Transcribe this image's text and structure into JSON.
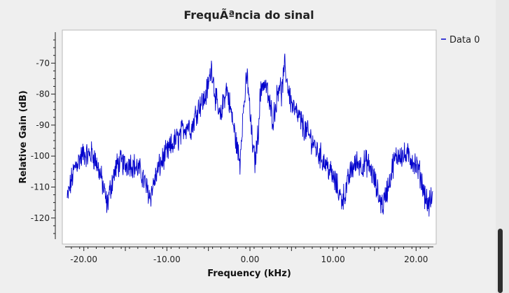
{
  "window": {
    "title": "FrequÃªncia do sinal"
  },
  "chart_data": {
    "type": "line",
    "title": "FrequÃªncia do sinal",
    "xlabel": "Frequency (kHz)",
    "ylabel": "Relative Gain (dB)",
    "xlim": [
      -22,
      22
    ],
    "ylim": [
      -127.5,
      -60
    ],
    "x_ticks": [
      -20,
      -10,
      0,
      10,
      20
    ],
    "x_tick_labels": [
      "-20.00",
      "-10.00",
      "0.00",
      "10.00",
      "20.00"
    ],
    "y_ticks": [
      -70,
      -80,
      -90,
      -100,
      -110,
      -120
    ],
    "y_tick_labels": [
      "-70",
      "-80",
      "-90",
      "-100",
      "-110",
      "-120"
    ],
    "grid": false,
    "legend_position": "top-right",
    "series_color": "#0000cc",
    "series": [
      {
        "name": "Data 0",
        "x": [
          -22,
          -21.5,
          -21,
          -20.5,
          -20,
          -19.5,
          -19,
          -18.5,
          -18,
          -17.5,
          -17.2,
          -17,
          -16.5,
          -16,
          -15.5,
          -15,
          -14.5,
          -14,
          -13.5,
          -13,
          -12.5,
          -12,
          -11.5,
          -11,
          -10.5,
          -10,
          -9.5,
          -9,
          -8.5,
          -8,
          -7.5,
          -7,
          -6.5,
          -6,
          -5.5,
          -5,
          -4.6,
          -4.2,
          -3.8,
          -3.5,
          -3.2,
          -2.8,
          -2.4,
          -2,
          -1.5,
          -1.2,
          -1,
          -0.6,
          -0.3,
          0,
          0.3,
          0.6,
          1,
          1.2,
          1.5,
          2,
          2.4,
          2.8,
          3.2,
          3.5,
          3.8,
          4.2,
          4.6,
          5,
          5.5,
          6,
          6.5,
          7,
          7.5,
          8,
          8.5,
          9,
          9.5,
          10,
          10.5,
          11,
          11.5,
          12,
          12.5,
          13,
          13.5,
          14,
          14.5,
          15,
          15.5,
          16,
          16.5,
          17,
          17.2,
          17.5,
          18,
          18.5,
          19,
          19.5,
          20,
          20.5,
          21,
          21.5,
          22
        ],
        "values": [
          -114,
          -108,
          -103,
          -101,
          -99,
          -100,
          -99,
          -102,
          -106,
          -112,
          -116,
          -113,
          -107,
          -103,
          -102,
          -103,
          -102,
          -103,
          -104,
          -106,
          -110,
          -113,
          -108,
          -104,
          -101,
          -99,
          -97,
          -95,
          -94,
          -91,
          -90,
          -91,
          -86,
          -83,
          -82,
          -77,
          -71,
          -80,
          -86,
          -88,
          -82,
          -78,
          -84,
          -90,
          -98,
          -102,
          -92,
          -80,
          -74,
          -86,
          -96,
          -102,
          -92,
          -82,
          -76,
          -78,
          -84,
          -88,
          -82,
          -76,
          -80,
          -71,
          -78,
          -83,
          -86,
          -88,
          -91,
          -93,
          -95,
          -98,
          -100,
          -102,
          -104,
          -107,
          -110,
          -114,
          -112,
          -106,
          -103,
          -102,
          -103,
          -102,
          -104,
          -108,
          -113,
          -116,
          -111,
          -106,
          -103,
          -101,
          -99,
          -100,
          -100,
          -101,
          -103,
          -106,
          -112,
          -116,
          -113
        ]
      }
    ]
  }
}
